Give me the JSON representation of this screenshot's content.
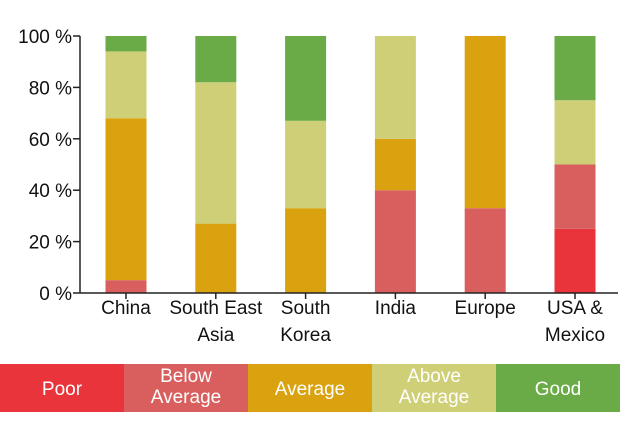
{
  "chart_data": {
    "type": "bar",
    "stacked": true,
    "categories": [
      "China",
      "South East\nAsia",
      "South\nKorea",
      "India",
      "Europe",
      "USA &\nMexico"
    ],
    "series": [
      {
        "name": "Poor",
        "color": "#e8343a",
        "values": [
          0,
          0,
          0,
          0,
          0,
          25
        ]
      },
      {
        "name": "Below\nAverage",
        "color": "#d95f5f",
        "values": [
          5,
          0,
          0,
          40,
          33,
          25
        ]
      },
      {
        "name": "Average",
        "color": "#dba20f",
        "values": [
          63,
          27,
          33,
          20,
          67,
          0
        ]
      },
      {
        "name": "Above\nAverage",
        "color": "#cfcf78",
        "values": [
          26,
          55,
          34,
          40,
          0,
          25
        ]
      },
      {
        "name": "Good",
        "color": "#6aab47",
        "values": [
          6,
          18,
          33,
          0,
          0,
          25
        ]
      }
    ],
    "yticks": [
      "0 %",
      "20 %",
      "40 %",
      "60 %",
      "80 %",
      "100 %"
    ],
    "ylim": [
      0,
      100
    ],
    "legend_position": "bottom"
  }
}
